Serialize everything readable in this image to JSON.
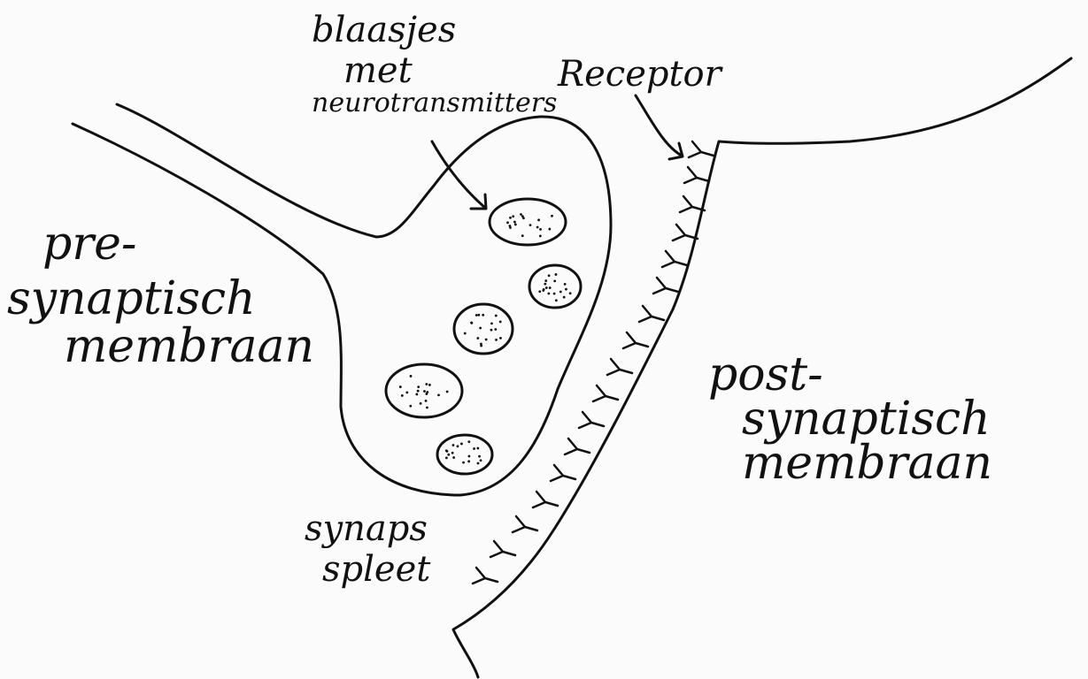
{
  "colors": {
    "ink": "#111111",
    "paper": "#fbfbfb"
  },
  "labels": {
    "pre": [
      "pre-",
      "synaptisch",
      "membraan"
    ],
    "post": [
      "post-",
      "synaptisch",
      "membraan"
    ],
    "vesicles": [
      "blaasjes",
      "met",
      "neurotransmitters"
    ],
    "receptor": "Receptor",
    "cleft": [
      "synaps",
      "spleet"
    ]
  }
}
